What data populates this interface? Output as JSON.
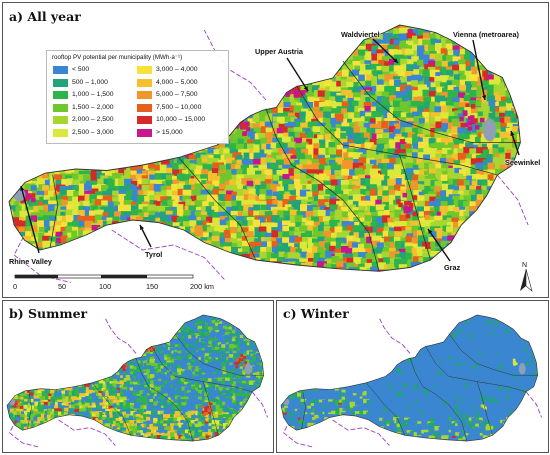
{
  "panels": {
    "a": {
      "title": "a) All year"
    },
    "b": {
      "title": "b) Summer"
    },
    "c": {
      "title": "c) Winter"
    }
  },
  "legend": {
    "title": "rooftop PV potential per municipality (MWh·a⁻¹)",
    "classes": [
      {
        "label": "< 500",
        "color": "#3a86d0"
      },
      {
        "label": "500 – 1,000",
        "color": "#22a37a"
      },
      {
        "label": "1,000 – 1,500",
        "color": "#2db44a"
      },
      {
        "label": "1,500 – 2,000",
        "color": "#6fc72d"
      },
      {
        "label": "2,000 – 2,500",
        "color": "#a8d630"
      },
      {
        "label": "2,500 – 3,000",
        "color": "#dbe83a"
      },
      {
        "label": "3,000 – 4,000",
        "color": "#f6e23a"
      },
      {
        "label": "4,000 – 5,000",
        "color": "#f4c02e"
      },
      {
        "label": "5,000 – 7,500",
        "color": "#f0962a"
      },
      {
        "label": "7,500 – 10,000",
        "color": "#e4601c"
      },
      {
        "label": "10,000 – 15,000",
        "color": "#d62a2a"
      },
      {
        "label": "> 15,000",
        "color": "#c8168c"
      }
    ]
  },
  "places": {
    "upper_austria": "Upper Austria",
    "waldviertel": "Waldviertel",
    "vienna": "Vienna (metroarea)",
    "seewinkel": "Seewinkel",
    "rhine_valley": "Rhine Valley",
    "tyrol": "Tyrol",
    "graz": "Graz"
  },
  "scale_bar": {
    "ticks": [
      "0",
      "50",
      "100",
      "150",
      "200 km"
    ]
  },
  "north_arrow": {
    "label": "N",
    "icon": "north-arrow-icon"
  },
  "colors": {
    "border": "#9b3fc2",
    "lake": "#8fa0b6",
    "boundary": "#2a3a2a"
  }
}
